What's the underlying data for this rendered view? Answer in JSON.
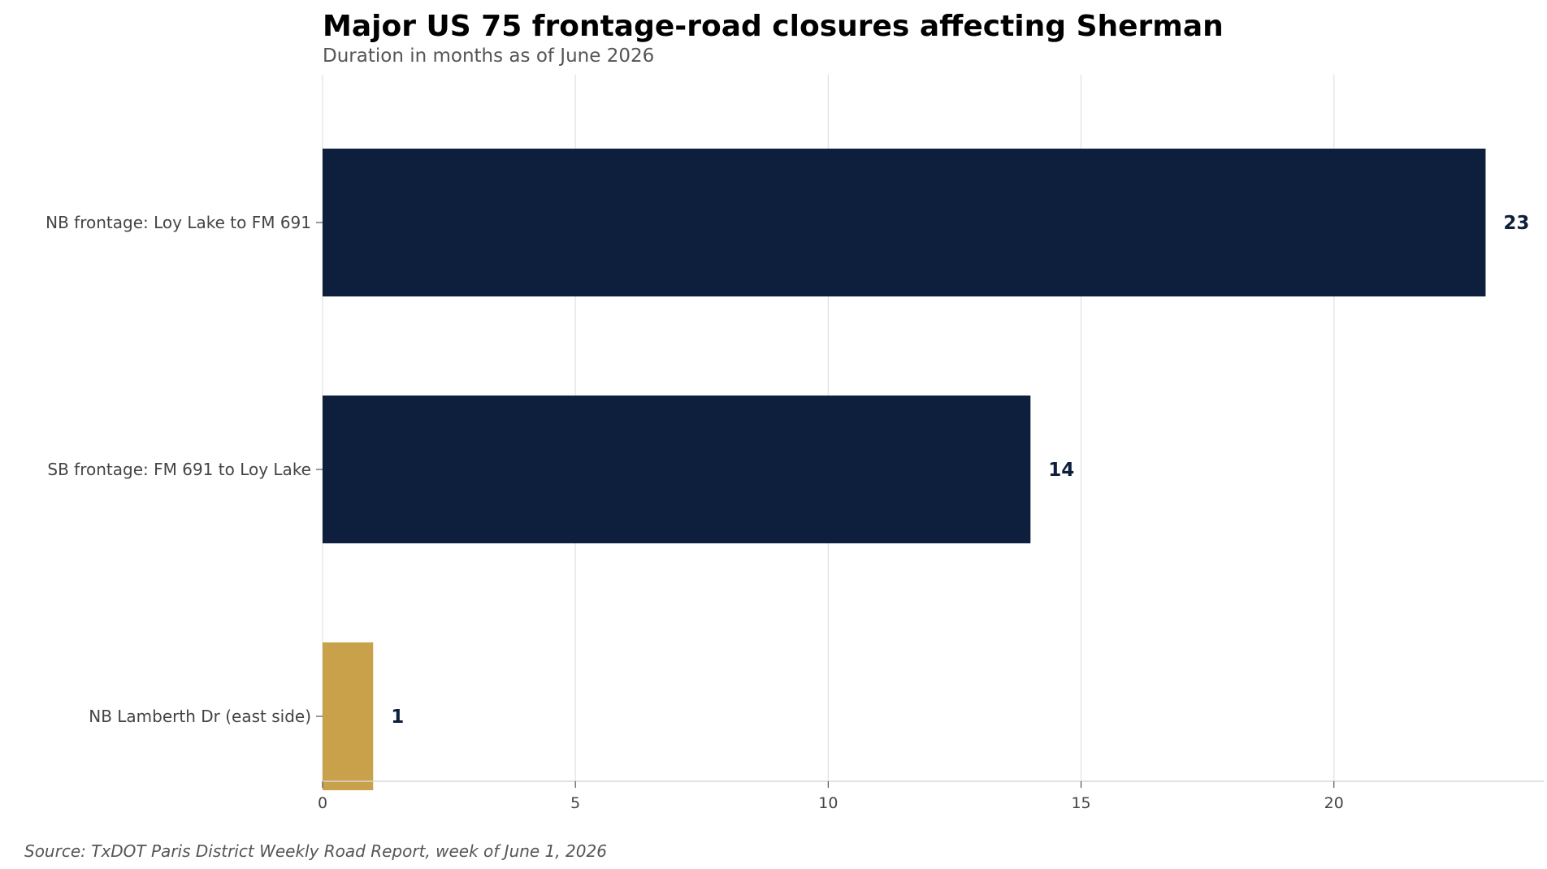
{
  "chart_data": {
    "type": "bar",
    "orientation": "horizontal",
    "title": "Major US 75 frontage-road closures affecting Sherman",
    "subtitle": "Duration in months as of June 2026",
    "categories": [
      "NB frontage: Loy Lake to FM 691",
      "SB frontage: FM 691 to Loy Lake",
      "NB Lamberth Dr (east side)"
    ],
    "values": [
      23,
      14,
      1
    ],
    "value_labels": [
      "23",
      "14",
      "1"
    ],
    "bar_colors": [
      "#0d1f3c",
      "#0d1f3c",
      "#c9a14a"
    ],
    "xlim": [
      0,
      24.15
    ],
    "xticks": [
      0,
      5,
      10,
      15,
      20
    ],
    "xtick_labels": [
      "0",
      "5",
      "10",
      "15",
      "20"
    ],
    "xlabel": "",
    "ylabel": "",
    "grid": "vertical",
    "legend": "none",
    "source": "Source: TxDOT Paris District Weekly Road Report, week of June 1, 2026"
  }
}
